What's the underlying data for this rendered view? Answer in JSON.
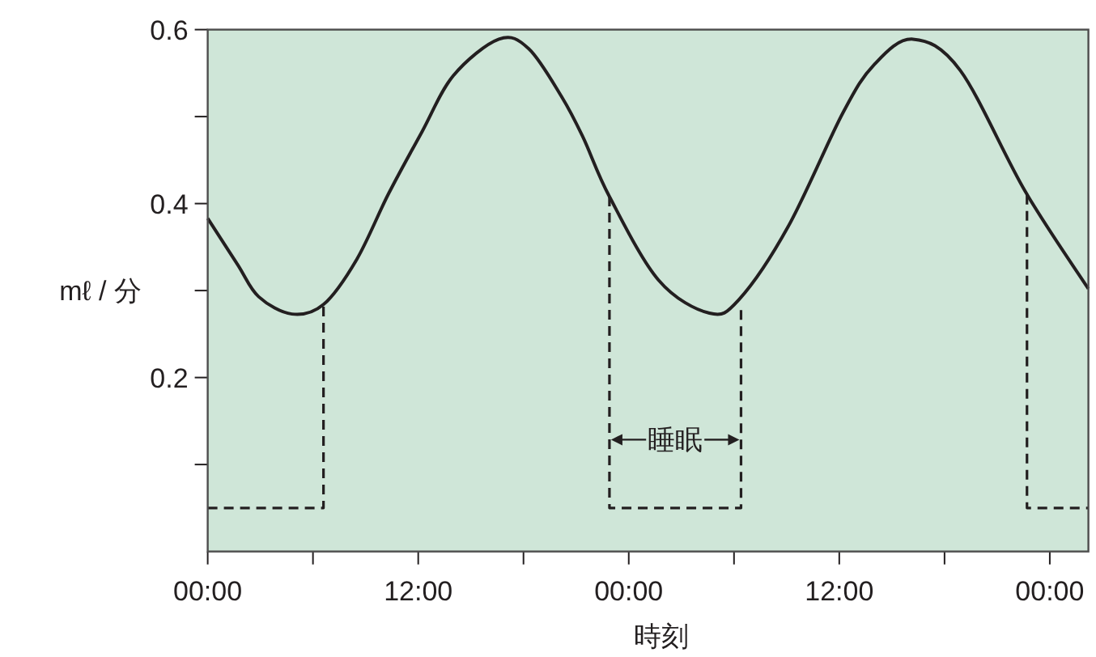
{
  "chart_data": {
    "type": "line",
    "xlabel": "時刻",
    "ylabel": "mℓ / 分",
    "xlim": [
      "--01-01T00:00",
      "--01-03T02:12"
    ],
    "ylim": [
      0,
      0.6
    ],
    "xticks": [
      {
        "value": "--01-01T00:00",
        "label": "00:00"
      },
      {
        "value": "--01-01T06:00",
        "label": null
      },
      {
        "value": "--01-01T12:00",
        "label": "12:00"
      },
      {
        "value": "--01-01T18:00",
        "label": null
      },
      {
        "value": "--01-02T00:00",
        "label": "00:00"
      },
      {
        "value": "--01-02T06:00",
        "label": null
      },
      {
        "value": "--01-02T12:00",
        "label": "12:00"
      },
      {
        "value": "--01-02T18:00",
        "label": null
      },
      {
        "value": "--01-03T00:00",
        "label": "00:00"
      }
    ],
    "yticks": [
      {
        "value": 0.1,
        "label": null
      },
      0.2,
      {
        "value": 0.3,
        "label": null
      },
      0.4,
      {
        "value": 0.5,
        "label": null
      },
      0.6
    ],
    "series": [
      {
        "color": "#231f20",
        "line_style": "solid",
        "x": [
          "--01-01T00:00",
          "--01-01T01:42",
          "--01-01T02:54",
          "--01-01T04:48",
          "--01-01T06:36",
          "--01-01T08:30",
          "--01-01T10:18",
          "--01-01T12:12",
          "--01-01T14:00",
          "--01-01T16:36",
          "--01-01T18:18",
          "--01-01T20:12",
          "--01-01T21:24",
          "--01-01T22:54",
          "--01-02T01:42",
          "--01-02T04:36",
          "--01-02T06:18",
          "--01-02T09:06",
          "--01-02T12:12",
          "--01-02T14:00",
          "--01-02T16:12",
          "--01-02T18:54",
          "--01-02T22:36",
          "--01-03T02:12"
        ],
        "values": [
          0.383,
          0.33,
          0.293,
          0.273,
          0.284,
          0.336,
          0.411,
          0.482,
          0.547,
          0.589,
          0.578,
          0.522,
          0.476,
          0.408,
          0.312,
          0.274,
          0.29,
          0.374,
          0.504,
          0.56,
          0.589,
          0.553,
          0.414,
          0.302
        ]
      },
      {
        "color": "#231f20",
        "line_style": "dashed",
        "x": [
          "--01-01T00:00",
          "--01-01T06:36",
          "--01-01T06:36"
        ],
        "values": [
          0.05,
          0.05,
          0.284
        ]
      },
      {
        "color": "#231f20",
        "line_style": "dashed",
        "x": [
          "--01-01T22:54",
          "--01-01T22:54",
          "--01-02T06:24",
          "--01-02T06:24"
        ],
        "values": [
          0.408,
          0.05,
          0.05,
          0.284
        ]
      },
      {
        "color": "#231f20",
        "line_style": "dashed",
        "x": [
          "--01-02T22:42",
          "--01-02T22:42",
          "--01-03T02:12"
        ],
        "values": [
          0.41,
          0.05,
          0.05
        ]
      }
    ],
    "annotations": [
      "睡眠"
    ]
  }
}
